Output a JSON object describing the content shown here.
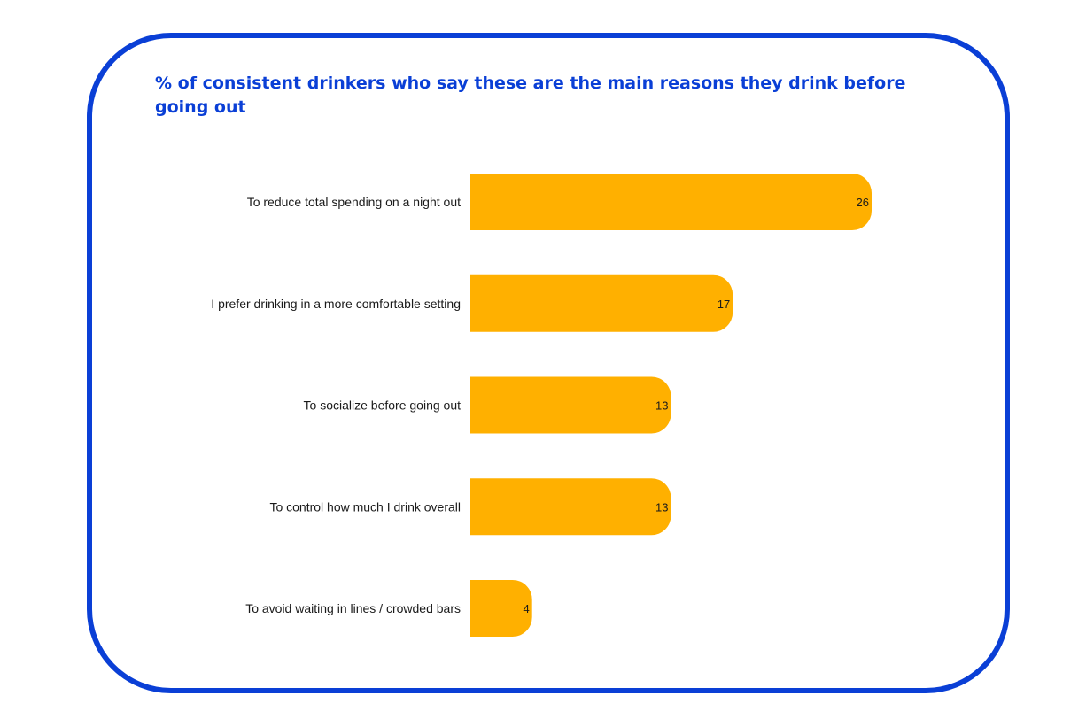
{
  "chart_data": {
    "type": "bar",
    "orientation": "horizontal",
    "title": "% of consistent drinkers who say these are the main reasons they drink before going out",
    "categories": [
      "To reduce total spending on a night out",
      "I prefer drinking in a more comfortable setting",
      "To socialize before going out",
      "To control how much I drink overall",
      "To avoid waiting in lines / crowded bars"
    ],
    "values": [
      26,
      17,
      13,
      13,
      4
    ],
    "xlim": [
      0,
      26
    ],
    "data_labels": "inside-end",
    "grid": false,
    "legend": "none",
    "colors": {
      "bar": "#FFB000",
      "frame": "#0A3FD6",
      "title": "#0A3FD6",
      "text": "#1A1A1A"
    }
  }
}
